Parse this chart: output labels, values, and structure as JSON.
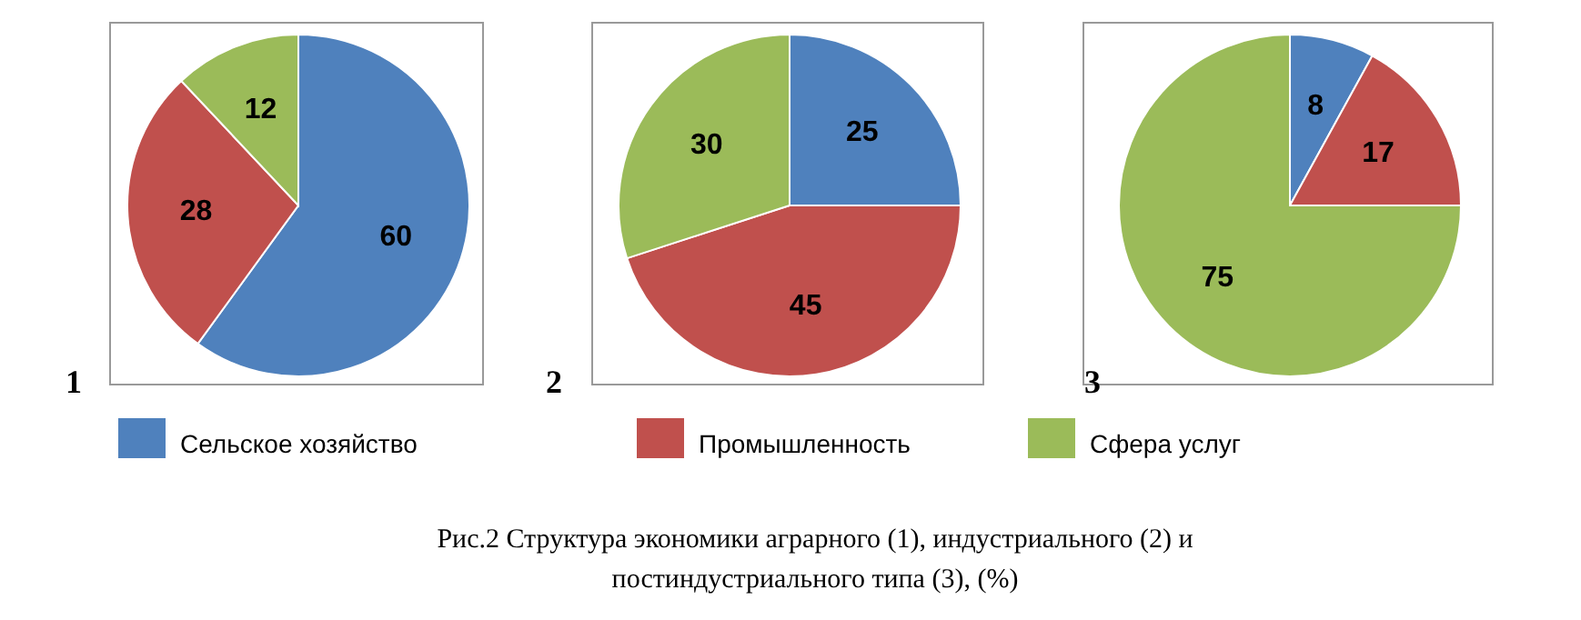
{
  "chart_data": {
    "type": "pie",
    "categories": [
      "Сельское хозяйство",
      "Промышленность",
      "Сфера услуг"
    ],
    "data_labels": true,
    "legend": "bottom",
    "annotations": [
      "Рис.2 Структура экономики аграрного (1), индустриального (2) и постиндустриального типа (3), (%)"
    ],
    "series": [
      {
        "name": "1",
        "values": [
          60,
          28,
          12
        ],
        "colors": [
          "#4f81bd",
          "#c0504d",
          "#9bbb59"
        ]
      },
      {
        "name": "2",
        "values": [
          25,
          45,
          30
        ],
        "colors": [
          "#4f81bd",
          "#c0504d",
          "#9bbb59"
        ]
      },
      {
        "name": "3",
        "values": [
          8,
          17,
          75
        ],
        "colors": [
          "#4f81bd",
          "#c0504d",
          "#9bbb59"
        ]
      }
    ]
  }
}
